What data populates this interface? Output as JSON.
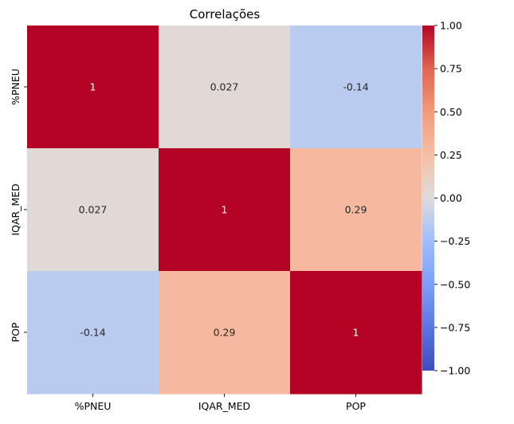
{
  "chart_data": {
    "type": "heatmap",
    "title": "Correlações",
    "xlabel": "",
    "ylabel": "",
    "x_categories": [
      "%PNEU",
      "IQAR_MED",
      "POP"
    ],
    "y_categories": [
      "%PNEU",
      "IQAR_MED",
      "POP"
    ],
    "values": [
      [
        1,
        0.027,
        -0.14
      ],
      [
        0.027,
        1,
        0.29
      ],
      [
        -0.14,
        0.29,
        1
      ]
    ],
    "cell_labels": [
      [
        "1",
        "0.027",
        "-0.14"
      ],
      [
        "0.027",
        "1",
        "0.29"
      ],
      [
        "-0.14",
        "0.29",
        "1"
      ]
    ],
    "colormap": "coolwarm",
    "colorbar": {
      "range": [
        -1.0,
        1.0
      ],
      "ticks": [
        1.0,
        0.75,
        0.5,
        0.25,
        0.0,
        -0.25,
        -0.5,
        -0.75,
        -1.0
      ],
      "tick_labels": [
        "1.00",
        "0.75",
        "0.50",
        "0.25",
        "0.00",
        "−0.25",
        "−0.50",
        "−0.75",
        "−1.00"
      ],
      "position": "right"
    },
    "annotations": true,
    "grid": false
  }
}
